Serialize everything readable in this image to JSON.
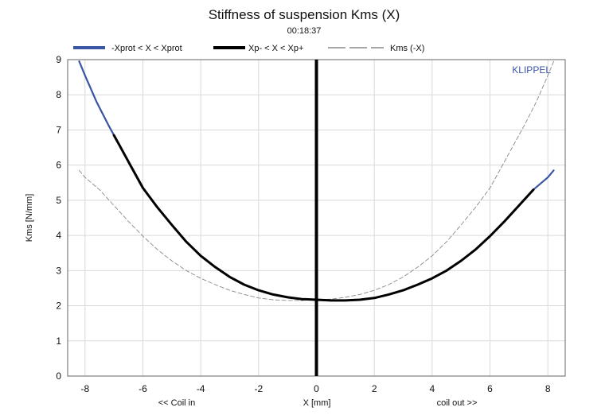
{
  "chart_data": {
    "type": "line",
    "title": "Stiffness of suspension Kms (X)",
    "subtitle": "00:18:37",
    "xlabel": "X [mm]",
    "ylabel": "Kms [N/mm]",
    "x_annotation_left": "<< Coil in",
    "x_annotation_right": "coil out >>",
    "brand": "KLIPPEL",
    "xlim": [
      -8.6,
      8.6
    ],
    "ylim": [
      0,
      9
    ],
    "x_ticks": [
      -8,
      -6,
      -4,
      -2,
      0,
      2,
      4,
      6,
      8
    ],
    "y_ticks": [
      0,
      1,
      2,
      3,
      4,
      5,
      6,
      7,
      8,
      9
    ],
    "grid": true,
    "legend_position": "top",
    "legend": [
      {
        "label": "-Xprot < X < Xprot",
        "color": "#3a55a4",
        "style": "solid-thick"
      },
      {
        "label": "Xp- < X < Xp+",
        "color": "#000000",
        "style": "solid-thick"
      },
      {
        "label": "Kms (-X)",
        "color": "#888888",
        "style": "dashed-thin"
      }
    ],
    "series": [
      {
        "name": "-Xprot < X < Xprot",
        "color": "#3a55a4",
        "x": [
          -8.2,
          -8.0,
          -7.6,
          -7.2,
          -6.8,
          -6.4,
          -6.0,
          -5.5,
          -5.0,
          -4.5,
          -4.0,
          -3.5,
          -3.0,
          -2.5,
          -2.0,
          -1.5,
          -1.0,
          -0.5,
          0.0,
          0.5,
          1.0,
          1.5,
          2.0,
          2.5,
          3.0,
          3.5,
          4.0,
          4.5,
          5.0,
          5.5,
          6.0,
          6.5,
          7.0,
          7.5,
          8.0,
          8.2
        ],
        "y": [
          8.95,
          8.55,
          7.8,
          7.15,
          6.55,
          5.95,
          5.35,
          4.8,
          4.3,
          3.82,
          3.42,
          3.1,
          2.82,
          2.6,
          2.44,
          2.32,
          2.24,
          2.19,
          2.17,
          2.15,
          2.15,
          2.17,
          2.22,
          2.32,
          2.44,
          2.6,
          2.78,
          3.0,
          3.28,
          3.6,
          3.98,
          4.4,
          4.85,
          5.3,
          5.65,
          5.85
        ]
      },
      {
        "name": "Xp- < X < Xp+",
        "color": "#000000",
        "x": [
          -7.0,
          -6.8,
          -6.4,
          -6.0,
          -5.5,
          -5.0,
          -4.5,
          -4.0,
          -3.5,
          -3.0,
          -2.5,
          -2.0,
          -1.5,
          -1.0,
          -0.5,
          0.0,
          0.5,
          1.0,
          1.5,
          2.0,
          2.5,
          3.0,
          3.5,
          4.0,
          4.5,
          5.0,
          5.5,
          6.0,
          6.5,
          7.0,
          7.5
        ],
        "y": [
          6.85,
          6.55,
          5.95,
          5.35,
          4.8,
          4.3,
          3.82,
          3.42,
          3.1,
          2.82,
          2.6,
          2.44,
          2.32,
          2.24,
          2.19,
          2.17,
          2.15,
          2.15,
          2.17,
          2.22,
          2.32,
          2.44,
          2.6,
          2.78,
          3.0,
          3.28,
          3.6,
          3.98,
          4.4,
          4.85,
          5.3
        ]
      },
      {
        "name": "Kms (-X)",
        "color": "#888888",
        "x": [
          -8.2,
          -8.0,
          -7.5,
          -7.0,
          -6.5,
          -6.0,
          -5.5,
          -5.0,
          -4.5,
          -4.0,
          -3.5,
          -3.0,
          -2.5,
          -2.0,
          -1.5,
          -1.0,
          -0.5,
          0.0,
          0.5,
          1.0,
          1.5,
          2.0,
          2.5,
          3.0,
          3.5,
          4.0,
          4.5,
          5.0,
          5.5,
          6.0,
          6.4,
          6.8,
          7.2,
          7.6,
          8.0,
          8.2
        ],
        "y": [
          5.85,
          5.65,
          5.3,
          4.85,
          4.4,
          3.98,
          3.6,
          3.28,
          3.0,
          2.78,
          2.6,
          2.44,
          2.32,
          2.22,
          2.17,
          2.15,
          2.15,
          2.17,
          2.19,
          2.24,
          2.32,
          2.44,
          2.6,
          2.82,
          3.1,
          3.42,
          3.82,
          4.3,
          4.8,
          5.35,
          5.95,
          6.55,
          7.15,
          7.8,
          8.55,
          8.95
        ]
      }
    ],
    "annotations": [
      {
        "type": "vertical-line",
        "x": 0,
        "color": "#000000"
      }
    ]
  }
}
